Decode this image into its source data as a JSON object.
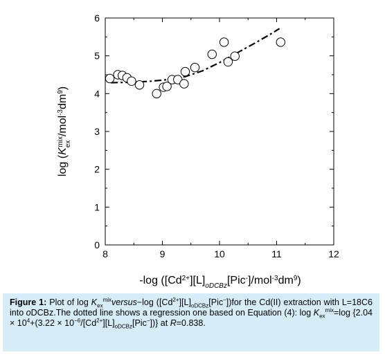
{
  "chart_data": {
    "type": "scatter",
    "xlabel": "-log ([Cd2+][L]oDCBz[Pic-]/mol-3dm9)",
    "ylabel": "log (Kex mix/mol-3dm9)",
    "xlim": [
      8,
      12
    ],
    "ylim": [
      0,
      6
    ],
    "x_ticks": [
      "8",
      "9",
      "10",
      "11",
      "12"
    ],
    "y_ticks": [
      "0",
      "1",
      "2",
      "3",
      "4",
      "5",
      "6"
    ],
    "grid": false,
    "legend": "none",
    "points": {
      "x": [
        8.08,
        8.22,
        8.3,
        8.38,
        8.46,
        8.6,
        8.9,
        9.02,
        9.08,
        9.17,
        9.27,
        9.38,
        9.4,
        9.57,
        9.87,
        10.08,
        10.15,
        10.27,
        11.07
      ],
      "y": [
        4.4,
        4.5,
        4.48,
        4.42,
        4.33,
        4.23,
        4.0,
        4.17,
        4.19,
        4.37,
        4.37,
        4.26,
        4.58,
        4.69,
        5.04,
        5.36,
        4.84,
        4.99,
        5.36
      ]
    },
    "regression_line": {
      "style": "dash-dot",
      "x": [
        8.1,
        8.5,
        8.8,
        9.1,
        9.4,
        9.7,
        10.0,
        10.3,
        10.6,
        10.9,
        11.05
      ],
      "y": [
        4.29,
        4.3,
        4.33,
        4.37,
        4.45,
        4.6,
        4.82,
        5.07,
        5.32,
        5.58,
        5.72
      ]
    },
    "marker_color": "#000000",
    "marker_fill": "#ffffff",
    "line_color": "#000000"
  },
  "caption": {
    "label": "Figure 1:",
    "t1": " Plot of log ",
    "k1": "K",
    "k1_sub": "ex",
    "k1_sup": "mix",
    "k1_after": "versus",
    "t2": "−log ([Cd",
    "cd_sup": "2+",
    "t3": "][L]",
    "odcbz1": "oDCBz",
    "t4": "[Pic",
    "pic_sup1": "−",
    "t5": "])for the Cd(II) extraction with L=18C6 into ",
    "odcbz_italic": "o",
    "t6": "DCBz.The dotted line shows a regression one based on Equation (4): log ",
    "k2": "K",
    "k2_sub": "ex",
    "k2_sup": "mix",
    "t7": "=log {2.04 × 10",
    "pow1": "4",
    "t8": "+(3.22 × 10",
    "pow2": "−6",
    "t9": "/[Cd",
    "cd_sup2": "2+",
    "t10": "][L]",
    "odcbz2": "oDCBz",
    "t11": "[Pic",
    "pic_sup2": "−",
    "t12": "])} at ",
    "r_label": "R",
    "t13": "=0.838."
  }
}
